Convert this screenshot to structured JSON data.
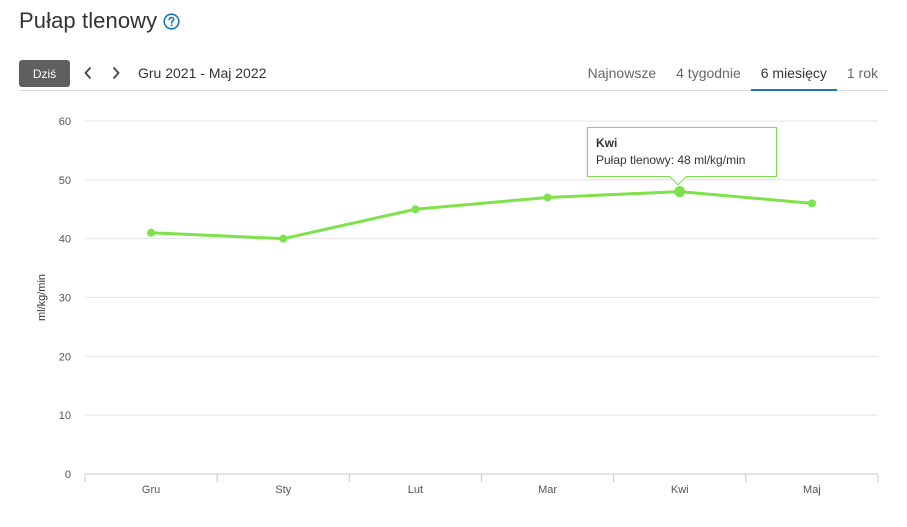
{
  "page": {
    "title": "Pułap tlenowy",
    "help_icon": "question-circle-icon",
    "accent_color": "#1c75bc"
  },
  "toolbar": {
    "today_label": "Dziś",
    "prev_icon": "chevron-left-icon",
    "next_icon": "chevron-right-icon",
    "date_range": "Gru 2021 - Maj 2022",
    "tabs": [
      {
        "label": "Najnowsze",
        "active": false
      },
      {
        "label": "4 tygodnie",
        "active": false
      },
      {
        "label": "6 miesięcy",
        "active": true
      },
      {
        "label": "1 rok",
        "active": false
      }
    ]
  },
  "tooltip": {
    "title": "Kwi",
    "body": "Pułap tlenowy: 48 ml/kg/min"
  },
  "chart_data": {
    "type": "line",
    "categories": [
      "Gru",
      "Sty",
      "Lut",
      "Mar",
      "Kwi",
      "Maj"
    ],
    "series": [
      {
        "values": [
          41,
          40,
          45,
          47,
          48,
          46
        ],
        "color": "#7ee24a"
      }
    ],
    "highlighted_index": 4,
    "ylabel": "ml/kg/min",
    "ylim": [
      0,
      60
    ],
    "yticks": [
      0,
      10,
      20,
      30,
      40,
      50,
      60
    ],
    "grid": true
  }
}
